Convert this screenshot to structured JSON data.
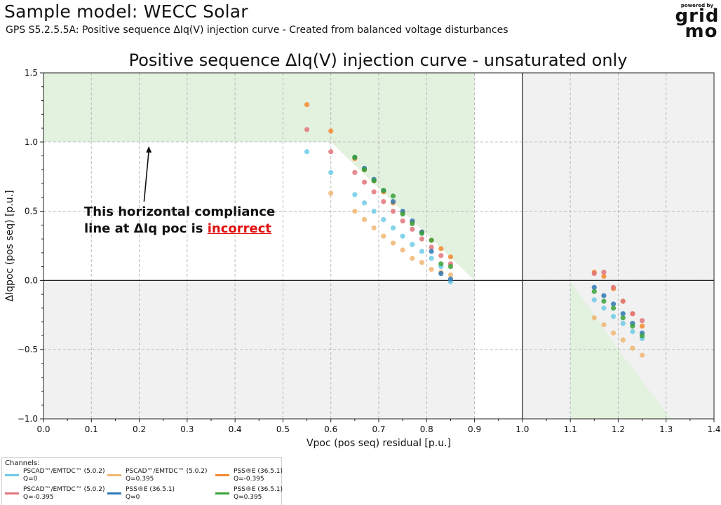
{
  "header": {
    "title": "Sample model: WECC Solar",
    "subtitle": "GPS S5.2.5.5A: Positive sequence ΔIq(V) injection curve - Created from balanced voltage disturbances"
  },
  "logo": {
    "top": "powered by",
    "line1": "grid",
    "line2": "mo"
  },
  "legend": {
    "title": "Channels:",
    "entries": [
      {
        "label": "PSCAD™/EMTDC™ (5.0.2)",
        "sub": "Q=0",
        "color": "#6fcbe6"
      },
      {
        "label": "PSCAD™/EMTDC™ (5.0.2)",
        "sub": "Q=0.395",
        "color": "#f0b672"
      },
      {
        "label": "PSS®E (36.5.1)",
        "sub": "Q=-0.395",
        "color": "#f28a2e"
      },
      {
        "label": "PSCAD™/EMTDC™ (5.0.2)",
        "sub": "Q=-0.395",
        "color": "#e0767a"
      },
      {
        "label": "PSS®E (36.5.1)",
        "sub": "Q=0",
        "color": "#2f78b5"
      },
      {
        "label": "PSS®E (36.5.1)",
        "sub": "Q=0.395",
        "color": "#3aa23a"
      }
    ]
  },
  "annotation": {
    "line1": "This horizontal compliance",
    "line2_prefix": "line at ΔIq poc is ",
    "line2_bad": "incorrect"
  },
  "chart_data": {
    "type": "scatter",
    "title": "Positive sequence ΔIq(V) injection curve - unsaturated only",
    "xlabel": "Vpoc (pos seq) residual [p.u.]",
    "ylabel": "ΔIqpoc (pos seq) [p.u.]",
    "xlim": [
      0.0,
      1.4
    ],
    "ylim": [
      -1.0,
      1.5
    ],
    "xticks": [
      "0.0",
      "0.1",
      "0.2",
      "0.3",
      "0.4",
      "0.5",
      "0.6",
      "0.7",
      "0.8",
      "0.9",
      "1.0",
      "1.1",
      "1.2",
      "1.3",
      "1.4"
    ],
    "yticks": [
      "1.5",
      "1.0",
      "0.5",
      "0.0",
      "−0.5",
      "−1.0"
    ],
    "grid": true,
    "series": [
      {
        "color": "#6fcbe6",
        "x": [
          0.55,
          0.6,
          0.65,
          0.67,
          0.69,
          0.71,
          0.73,
          0.75,
          0.77,
          0.79,
          0.81,
          0.83,
          0.85,
          1.15,
          1.17,
          1.19,
          1.21,
          1.23,
          1.25
        ],
        "y": [
          0.93,
          0.78,
          0.62,
          0.56,
          0.5,
          0.44,
          0.38,
          0.32,
          0.26,
          0.21,
          0.16,
          0.1,
          -0.01,
          -0.14,
          -0.2,
          -0.26,
          -0.31,
          -0.37,
          -0.42
        ]
      },
      {
        "color": "#f0b672",
        "x": [
          0.6,
          0.65,
          0.67,
          0.69,
          0.71,
          0.73,
          0.75,
          0.77,
          0.79,
          0.81,
          0.83,
          0.85,
          1.15,
          1.17,
          1.19,
          1.21,
          1.23,
          1.25
        ],
        "y": [
          0.63,
          0.5,
          0.44,
          0.38,
          0.32,
          0.27,
          0.22,
          0.16,
          0.13,
          0.08,
          0.06,
          0.04,
          -0.27,
          -0.32,
          -0.38,
          -0.43,
          -0.49,
          -0.54
        ]
      },
      {
        "color": "#f28a2e",
        "x": [
          0.55,
          0.6,
          0.65,
          0.67,
          0.69,
          0.71,
          0.73,
          0.75,
          0.77,
          0.79,
          0.81,
          0.83,
          0.85,
          1.15,
          1.17,
          1.19,
          1.21,
          1.23,
          1.25
        ],
        "y": [
          1.27,
          1.08,
          0.88,
          0.8,
          0.72,
          0.64,
          0.56,
          0.49,
          0.42,
          0.35,
          0.29,
          0.23,
          0.17,
          0.06,
          0.03,
          -0.06,
          -0.15,
          -0.24,
          -0.33
        ]
      },
      {
        "color": "#e0767a",
        "x": [
          0.55,
          0.6,
          0.65,
          0.67,
          0.69,
          0.71,
          0.73,
          0.75,
          0.77,
          0.79,
          0.81,
          0.83,
          0.85,
          1.15,
          1.17,
          1.19,
          1.21,
          1.23,
          1.25
        ],
        "y": [
          1.09,
          0.93,
          0.78,
          0.71,
          0.64,
          0.57,
          0.5,
          0.43,
          0.37,
          0.3,
          0.24,
          0.18,
          0.12,
          0.05,
          0.06,
          -0.05,
          -0.15,
          -0.24,
          -0.29
        ]
      },
      {
        "color": "#2f78b5",
        "x": [
          0.65,
          0.67,
          0.69,
          0.71,
          0.73,
          0.75,
          0.77,
          0.79,
          0.81,
          0.83,
          0.85,
          1.15,
          1.17,
          1.19,
          1.21,
          1.23,
          1.25
        ],
        "y": [
          0.89,
          0.81,
          0.73,
          0.65,
          0.57,
          0.5,
          0.43,
          0.35,
          0.21,
          0.05,
          0.01,
          -0.05,
          -0.11,
          -0.17,
          -0.24,
          -0.31,
          -0.38
        ]
      },
      {
        "color": "#3aa23a",
        "x": [
          0.65,
          0.67,
          0.69,
          0.71,
          0.73,
          0.75,
          0.77,
          0.79,
          0.81,
          0.83,
          0.85,
          1.15,
          1.17,
          1.19,
          1.21,
          1.23,
          1.25
        ],
        "y": [
          0.89,
          0.8,
          0.72,
          0.65,
          0.61,
          0.48,
          0.41,
          0.34,
          0.29,
          0.12,
          0.1,
          -0.08,
          -0.15,
          -0.2,
          -0.27,
          -0.33,
          -0.4
        ]
      }
    ],
    "regions": {
      "green_upper": [
        [
          0.0,
          1.5
        ],
        [
          0.9,
          1.5
        ],
        [
          0.9,
          0.0
        ],
        [
          0.6,
          1.0
        ],
        [
          0.0,
          1.0
        ]
      ],
      "green_lower": [
        [
          1.1,
          0.0
        ],
        [
          1.1,
          -1.0
        ],
        [
          1.31,
          -1.0
        ],
        [
          1.2,
          -0.5
        ]
      ],
      "grey_right": [
        [
          1.0,
          1.5
        ],
        [
          1.4,
          1.5
        ],
        [
          1.4,
          -1.0
        ],
        [
          1.0,
          -1.0
        ]
      ],
      "grey_lower_left": [
        [
          0.0,
          0.0
        ],
        [
          0.9,
          0.0
        ],
        [
          0.9,
          -1.0
        ],
        [
          0.0,
          -1.0
        ]
      ]
    },
    "arrow": {
      "from": [
        0.21,
        0.57
      ],
      "to": [
        0.22,
        0.97
      ]
    }
  }
}
